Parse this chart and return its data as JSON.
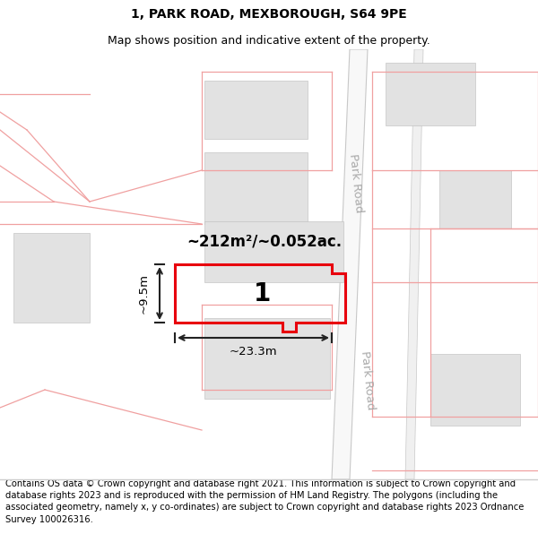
{
  "title": "1, PARK ROAD, MEXBOROUGH, S64 9PE",
  "subtitle": "Map shows position and indicative extent of the property.",
  "footer": "Contains OS data © Crown copyright and database right 2021. This information is subject to Crown copyright and database rights 2023 and is reproduced with the permission of HM Land Registry. The polygons (including the associated geometry, namely x, y co-ordinates) are subject to Crown copyright and database rights 2023 Ordnance Survey 100026316.",
  "bg_color": "#ffffff",
  "map_bg": "#ffffff",
  "area_text": "~212m²/~0.052ac.",
  "dim_width": "~23.3m",
  "dim_height": "~9.5m",
  "label": "1",
  "red_color": "#e8000d",
  "light_red": "#f5c0c0",
  "gray_building": "#e2e2e2",
  "road_label": "Park Road",
  "footer_fontsize": 7.2,
  "title_fontsize": 10,
  "subtitle_fontsize": 9
}
